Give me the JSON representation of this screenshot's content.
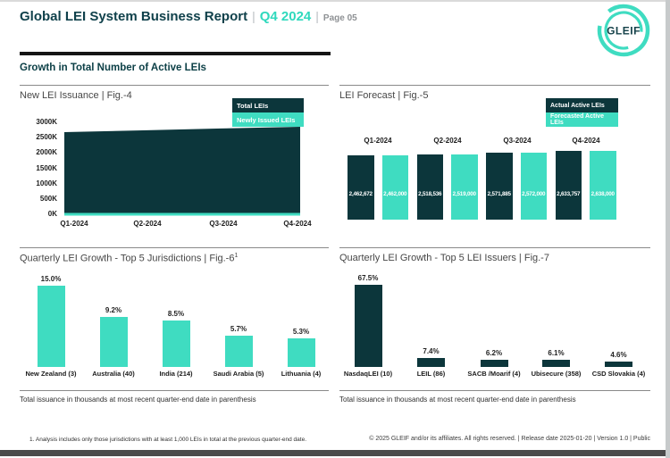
{
  "header": {
    "title": "Global LEI System Business Report",
    "separator": "|",
    "period": "Q4 2024",
    "page": "Page 05",
    "logo_text": "GLEIF"
  },
  "section_title": "Growth in Total Number of Active LEIs",
  "colors": {
    "dark_teal": "#0C363B",
    "teal": "#3FDCC1",
    "header_teal": "#10414B",
    "accent_teal": "#2FD9BD",
    "bottom_bar": "#4B4B4B"
  },
  "chart_data": [
    {
      "id": "new-lei-issuance",
      "type": "area",
      "title": "New LEI Issuance | Fig.-4",
      "x": [
        "Q1-2024",
        "Q2-2024",
        "Q3-2024",
        "Q4-2024"
      ],
      "yticks": [
        "3000K",
        "2500K",
        "2000K",
        "1500K",
        "1000K",
        "500K",
        "0K"
      ],
      "ylim": [
        0,
        3000000
      ],
      "legend_position": "top-right",
      "series": [
        {
          "name": "Total LEIs",
          "color": "#0C363B",
          "values": [
            2650000,
            2710000,
            2770000,
            2825000
          ]
        },
        {
          "name": "Newly Issued LEIs",
          "color": "#3FDCC1",
          "values": [
            58000,
            58000,
            58000,
            58000
          ]
        }
      ]
    },
    {
      "id": "lei-forecast",
      "type": "bar",
      "title": "LEI Forecast | Fig.-5",
      "categories": [
        "Q1-2024",
        "Q2-2024",
        "Q3-2024",
        "Q4-2024"
      ],
      "legend_position": "top-right",
      "series": [
        {
          "name": "Actual Active LEIs",
          "color": "#0C363B",
          "values": [
            2462672,
            2518536,
            2571885,
            2633757
          ],
          "labels": [
            "2,462,672",
            "2,518,536",
            "2,571,885",
            "2,633,757"
          ]
        },
        {
          "name": "Forecasted Active LEIs",
          "color": "#3FDCC1",
          "values": [
            2462000,
            2519000,
            2572000,
            2638000
          ],
          "labels": [
            "2,462,000",
            "2,519,000",
            "2,572,000",
            "2,638,000"
          ]
        }
      ]
    },
    {
      "id": "growth-jurisdictions",
      "type": "bar",
      "title": "Quarterly LEI Growth - Top 5 Jurisdictions | Fig.-6",
      "title_superscript": "1",
      "bar_color": "#3FDCC1",
      "categories": [
        "New Zealand (3)",
        "Australia (40)",
        "India (214)",
        "Saudi Arabia (5)",
        "Lithuania (4)"
      ],
      "values": [
        15.0,
        9.2,
        8.5,
        5.7,
        5.3
      ],
      "labels": [
        "15.0%",
        "9.2%",
        "8.5%",
        "5.7%",
        "5.3%"
      ],
      "note": "Total issuance in thousands at most recent quarter-end date in parenthesis"
    },
    {
      "id": "growth-issuers",
      "type": "bar",
      "title": "Quarterly LEI Growth - Top 5 LEI Issuers | Fig.-7",
      "bar_color": "#0C363B",
      "categories": [
        "NasdaqLEI (10)",
        "LEIL (86)",
        "SACB /Moarif (4)",
        "Ubisecure (358)",
        "CSD Slovakia (4)"
      ],
      "values": [
        67.5,
        7.4,
        6.2,
        6.1,
        4.6
      ],
      "labels": [
        "67.5%",
        "7.4%",
        "6.2%",
        "6.1%",
        "4.6%"
      ],
      "note": "Total issuance in thousands at most recent quarter-end date in parenthesis"
    }
  ],
  "footer": {
    "footnote": "1. Analysis includes only those jurisdictions with at least 1,000 LEIs in total at the previous quarter-end date.",
    "copyright": "© 2025 GLEIF and/or its affiliates. All rights reserved. | Release date 2025-01-20 | Version 1.0 | Public"
  }
}
